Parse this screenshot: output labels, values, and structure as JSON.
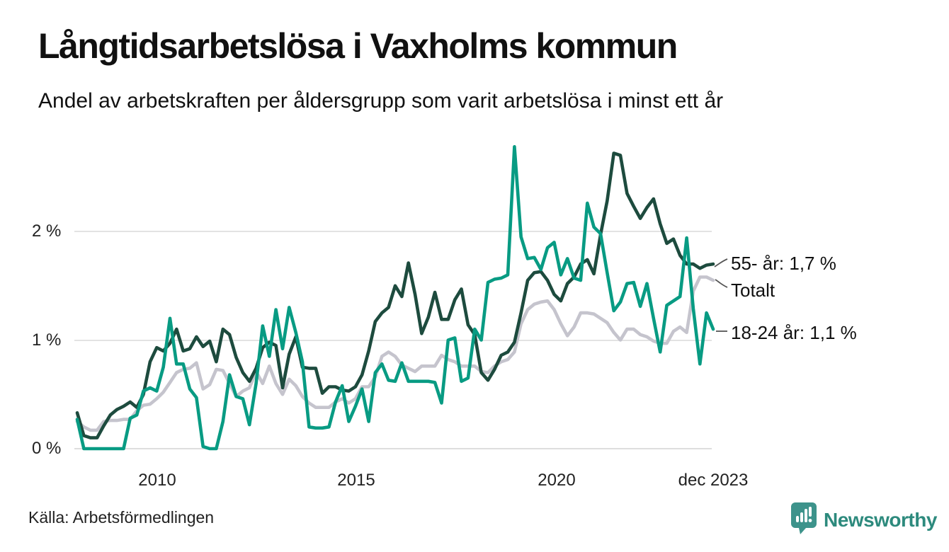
{
  "header": {
    "title": "Långtidsarbetslösa i Vaxholms kommun",
    "subtitle": "Andel av arbetskraften per åldersgrupp som varit arbetslösa i minst ett år"
  },
  "chart": {
    "y_ticks": [
      "2 %",
      "1 %",
      "0 %"
    ],
    "x_ticks": [
      "2010",
      "2015",
      "2020",
      "dec 2023"
    ],
    "end_labels": [
      {
        "text": "55- år: 1,7 %"
      },
      {
        "text": "Totalt"
      },
      {
        "text": "18-24 år: 1,1 %"
      }
    ]
  },
  "chart_data": {
    "type": "line",
    "title": "Långtidsarbetslösa i Vaxholms kommun",
    "subtitle": "Andel av arbetskraften per åldersgrupp som varit arbetslösa i minst ett år",
    "x_start": "jan 2008",
    "x_end": "dec 2023",
    "x_tick_labels": [
      "2010",
      "2015",
      "2020",
      "dec 2023"
    ],
    "y_tick_labels": [
      "0 %",
      "1 %",
      "2 %"
    ],
    "y_unit": "%",
    "ylim": [
      0,
      2.9
    ],
    "grid": "horizontal only",
    "legend_position": "right edge, direct labels at line ends",
    "sampling_note": "values estimated from pixels, ~2-month spacing jan 2008 to dec 2023",
    "series": [
      {
        "name": "Totalt",
        "color": "#c5c4cd",
        "end_value": 1.55,
        "values": [
          0.25,
          0.2,
          0.17,
          0.17,
          0.25,
          0.26,
          0.26,
          0.27,
          0.27,
          0.35,
          0.4,
          0.41,
          0.46,
          0.52,
          0.61,
          0.7,
          0.73,
          0.74,
          0.79,
          0.55,
          0.59,
          0.73,
          0.72,
          0.6,
          0.48,
          0.53,
          0.56,
          0.71,
          0.6,
          0.76,
          0.6,
          0.5,
          0.64,
          0.58,
          0.48,
          0.42,
          0.38,
          0.38,
          0.38,
          0.43,
          0.46,
          0.42,
          0.46,
          0.57,
          0.57,
          0.66,
          0.85,
          0.89,
          0.85,
          0.77,
          0.74,
          0.71,
          0.76,
          0.76,
          0.76,
          0.86,
          0.82,
          0.8,
          0.76,
          0.76,
          0.76,
          0.71,
          0.7,
          0.76,
          0.8,
          0.82,
          0.89,
          1.15,
          1.28,
          1.33,
          1.35,
          1.36,
          1.28,
          1.15,
          1.04,
          1.12,
          1.25,
          1.25,
          1.24,
          1.2,
          1.16,
          1.07,
          1.0,
          1.1,
          1.1,
          1.05,
          1.03,
          0.99,
          0.97,
          0.97,
          1.08,
          1.12,
          1.07,
          1.45,
          1.58,
          1.58,
          1.55
        ]
      },
      {
        "name": "55- år",
        "color": "#1d4b3e",
        "end_value": 1.7,
        "values": [
          0.33,
          0.12,
          0.1,
          0.1,
          0.21,
          0.31,
          0.36,
          0.39,
          0.43,
          0.38,
          0.5,
          0.8,
          0.93,
          0.9,
          0.97,
          1.1,
          0.9,
          0.92,
          1.03,
          0.94,
          0.99,
          0.8,
          1.1,
          1.05,
          0.84,
          0.7,
          0.62,
          0.74,
          0.93,
          0.98,
          0.95,
          0.56,
          0.87,
          1.03,
          0.75,
          0.74,
          0.74,
          0.51,
          0.57,
          0.57,
          0.54,
          0.53,
          0.57,
          0.68,
          0.9,
          1.17,
          1.25,
          1.3,
          1.5,
          1.4,
          1.71,
          1.42,
          1.06,
          1.21,
          1.44,
          1.19,
          1.19,
          1.37,
          1.47,
          1.14,
          1.05,
          0.7,
          0.63,
          0.73,
          0.86,
          0.89,
          0.98,
          1.25,
          1.55,
          1.62,
          1.63,
          1.55,
          1.42,
          1.36,
          1.52,
          1.58,
          1.7,
          1.74,
          1.61,
          1.97,
          2.28,
          2.72,
          2.7,
          2.35,
          2.23,
          2.12,
          2.22,
          2.3,
          2.07,
          1.89,
          1.93,
          1.78,
          1.7,
          1.7,
          1.66,
          1.69,
          1.7
        ]
      },
      {
        "name": "18-24 år",
        "color": "#089b83",
        "end_value": 1.1,
        "values": [
          0.27,
          0.0,
          0.0,
          0.0,
          0.0,
          0.0,
          0.0,
          0.0,
          0.28,
          0.31,
          0.53,
          0.56,
          0.53,
          0.75,
          1.2,
          0.78,
          0.78,
          0.55,
          0.47,
          0.02,
          0.0,
          0.0,
          0.25,
          0.68,
          0.48,
          0.46,
          0.22,
          0.6,
          1.13,
          0.85,
          1.28,
          0.92,
          1.3,
          1.07,
          0.8,
          0.2,
          0.19,
          0.19,
          0.2,
          0.43,
          0.58,
          0.25,
          0.39,
          0.55,
          0.25,
          0.7,
          0.78,
          0.63,
          0.62,
          0.79,
          0.62,
          0.62,
          0.62,
          0.62,
          0.61,
          0.42,
          1.0,
          1.02,
          0.62,
          0.65,
          1.1,
          1.0,
          1.53,
          1.56,
          1.57,
          1.6,
          2.78,
          1.95,
          1.75,
          1.76,
          1.65,
          1.85,
          1.9,
          1.6,
          1.75,
          1.57,
          1.55,
          2.26,
          2.04,
          1.98,
          1.62,
          1.27,
          1.35,
          1.52,
          1.53,
          1.31,
          1.52,
          1.2,
          0.89,
          1.32,
          1.36,
          1.4,
          1.94,
          1.29,
          0.78,
          1.25,
          1.1
        ]
      }
    ]
  },
  "footer": {
    "source": "Källa: Arbetsförmedlingen",
    "brand": "Newsworthy",
    "brand_color": "#2d8a7d",
    "logo_color": "#3d938b"
  }
}
